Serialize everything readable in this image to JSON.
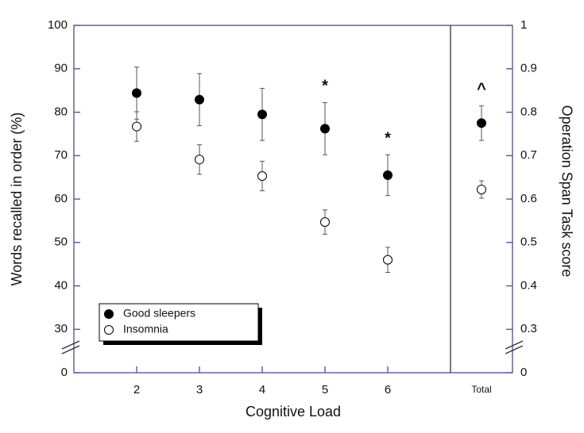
{
  "chart_data": {
    "type": "scatter",
    "x_label": "Cognitive Load",
    "y_label": "Words recalled in order (%)",
    "y2_label": "Operation Span Task score",
    "categories": [
      "2",
      "3",
      "4",
      "5",
      "6"
    ],
    "total_category": "Total",
    "ylim": [
      0,
      100
    ],
    "yticks": [
      0,
      30,
      40,
      50,
      60,
      70,
      80,
      90,
      100
    ],
    "y_break": [
      0,
      20
    ],
    "y2lim": [
      0,
      1
    ],
    "y2ticks": [
      0,
      0.3,
      0.4,
      0.5,
      0.6,
      0.7,
      0.8,
      0.9,
      1
    ],
    "y2_break": [
      0,
      0.2
    ],
    "legend": "bottom-left",
    "series": [
      {
        "name": "Good sleepers",
        "color": "#000000",
        "filled": true,
        "values": [
          84.4,
          82.9,
          79.5,
          76.2,
          65.5
        ],
        "errors": [
          6,
          6,
          6,
          6,
          4.7
        ],
        "total": 0.775,
        "total_error": 0.04,
        "total_axis": "y2"
      },
      {
        "name": "Insomnia",
        "color": "#000000",
        "filled": false,
        "values": [
          76.7,
          69.1,
          65.3,
          54.7,
          46
        ],
        "errors": [
          3.4,
          3.4,
          3.4,
          2.8,
          2.9
        ],
        "total": 0.622,
        "total_error": 0.02,
        "total_axis": "y2"
      }
    ],
    "annotations": [
      {
        "text": "*",
        "category": "5"
      },
      {
        "text": "*",
        "category": "6"
      },
      {
        "text": "^",
        "category": "Total"
      }
    ]
  }
}
